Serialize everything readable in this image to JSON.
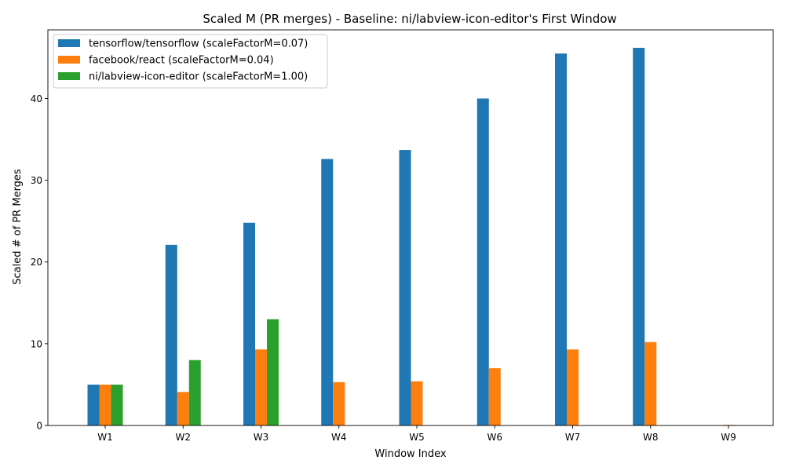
{
  "chart_data": {
    "type": "bar",
    "title": "Scaled M (PR merges) - Baseline: ni/labview-icon-editor's First Window",
    "xlabel": "Window Index",
    "ylabel": "Scaled # of PR Merges",
    "categories": [
      "W1",
      "W2",
      "W3",
      "W4",
      "W5",
      "W6",
      "W7",
      "W8",
      "W9"
    ],
    "ylim": [
      0,
      48.4
    ],
    "yticks": [
      0,
      10,
      20,
      30,
      40
    ],
    "grid": false,
    "legend_position": "top-left",
    "series": [
      {
        "name": "tensorflow/tensorflow (scaleFactorM=0.07)",
        "color": "#1f77b4",
        "values": [
          5.0,
          22.1,
          24.8,
          32.6,
          33.7,
          40.0,
          45.5,
          46.2,
          0
        ]
      },
      {
        "name": "facebook/react (scaleFactorM=0.04)",
        "color": "#ff7f0e",
        "values": [
          5.0,
          4.1,
          9.3,
          5.3,
          5.4,
          7.0,
          9.3,
          10.2,
          0.07
        ]
      },
      {
        "name": "ni/labview-icon-editor (scaleFactorM=1.00)",
        "color": "#2ca02c",
        "values": [
          5.0,
          8.0,
          13.0,
          0,
          0,
          0,
          0,
          0,
          0
        ]
      }
    ]
  }
}
